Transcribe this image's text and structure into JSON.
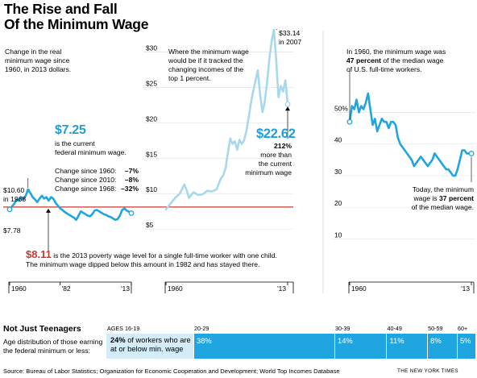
{
  "title_line1": "The Rise and Fall",
  "title_line2": "Of the Minimum Wage",
  "panel1": {
    "intro": [
      "Change in the real",
      "minimum wage since",
      "1960, in 2013 dollars."
    ],
    "current_value": "$7.25",
    "current_caption": [
      "is the current",
      "federal minimum wage."
    ],
    "changes": [
      {
        "label": "Change since 1960:",
        "value": "–7%"
      },
      {
        "label": "Change since 2010:",
        "value": "–8%"
      },
      {
        "label": "Change since 1968:",
        "value": "–32%"
      }
    ],
    "peak_label": [
      "$10.60",
      "in 1968"
    ],
    "start_label": "$7.78",
    "poverty_value": "$8.11",
    "poverty_caption_1": " is the 2013 poverty wage level for a single full-time worker with one child.",
    "poverty_caption_2": "The minimum wage dipped below this amount in 1982 and has stayed there.",
    "x_ticks": [
      "1960",
      "'82",
      "'13"
    ]
  },
  "panel2": {
    "intro": [
      "Where the minimum wage",
      "would be if it tracked the",
      "changing incomes of the",
      "top 1 percent."
    ],
    "y_ticks": [
      "$30",
      "$25",
      "$20",
      "$15",
      "$10",
      "$5"
    ],
    "peak_label": [
      "$33.14",
      "in 2007"
    ],
    "end_value": "$22.62",
    "end_caption": [
      "212%",
      "more than",
      "the current",
      "minimum wage"
    ],
    "x_ticks": [
      "1960",
      "'13"
    ]
  },
  "panel3": {
    "intro_1": "In 1960, the minimum wage was",
    "intro_2_bold": "47 percent",
    "intro_2_rest": " of the median wage",
    "intro_3": "of U.S. full-time workers.",
    "y_ticks": [
      "50%",
      "40",
      "30",
      "20",
      "10"
    ],
    "end_1": "Today, the minimum",
    "end_2_pre": "wage is ",
    "end_2_bold": "37 percent",
    "end_3": "of the median wage.",
    "x_ticks": [
      "1960",
      "'13"
    ]
  },
  "teens": {
    "heading": "Not Just Teenagers",
    "description": [
      "Age distribution of those earning",
      "the federal minimum or less:"
    ],
    "age_groups": [
      "AGES 16-19",
      "20-29",
      "30-39",
      "40-49",
      "50-59",
      "60+"
    ],
    "first_bold": "24%",
    "first_text_1": " of workers who are",
    "first_text_2": "at or below min. wage",
    "rest_labels": [
      "38%",
      "14%",
      "11%",
      "8%",
      "5%"
    ]
  },
  "source": "Source: Bureau of Labor Statistics; Organization for Economic Cooperation and Development; World Top Incomes Database",
  "credit": "THE NEW YORK TIMES",
  "chart_data": [
    {
      "type": "line",
      "name": "Real federal minimum wage, 2013 dollars",
      "x_range": [
        1960,
        2013
      ],
      "x": [
        1960,
        1961,
        1962,
        1963,
        1964,
        1965,
        1966,
        1967,
        1968,
        1969,
        1970,
        1971,
        1972,
        1973,
        1974,
        1975,
        1976,
        1977,
        1978,
        1979,
        1980,
        1981,
        1982,
        1983,
        1984,
        1985,
        1986,
        1987,
        1988,
        1989,
        1990,
        1991,
        1992,
        1993,
        1994,
        1995,
        1996,
        1997,
        1998,
        1999,
        2000,
        2001,
        2002,
        2003,
        2004,
        2005,
        2006,
        2007,
        2008,
        2009,
        2010,
        2011,
        2012,
        2013
      ],
      "y": [
        7.78,
        8.2,
        8.55,
        9.2,
        9.0,
        9.5,
        9.2,
        9.7,
        10.6,
        10.1,
        9.5,
        9.2,
        8.8,
        9.3,
        9.7,
        9.3,
        9.5,
        9.0,
        9.5,
        9.3,
        8.7,
        8.3,
        7.9,
        7.7,
        7.4,
        7.2,
        7.0,
        6.8,
        6.6,
        6.3,
        6.9,
        7.5,
        7.3,
        7.1,
        6.9,
        6.8,
        7.1,
        7.6,
        7.7,
        7.5,
        7.3,
        7.1,
        7.0,
        6.8,
        6.7,
        6.5,
        6.3,
        6.4,
        6.9,
        7.7,
        7.9,
        7.6,
        7.45,
        7.25
      ],
      "reference_line": 8.11,
      "y_range": [
        4,
        33
      ]
    },
    {
      "type": "line",
      "name": "Minimum wage if it tracked incomes of the top 1 percent",
      "x_range": [
        1960,
        2013
      ],
      "x": [
        1960,
        1962,
        1964,
        1966,
        1968,
        1969,
        1970,
        1972,
        1974,
        1976,
        1978,
        1980,
        1982,
        1983,
        1984,
        1985,
        1986,
        1987,
        1988,
        1989,
        1990,
        1991,
        1992,
        1993,
        1994,
        1995,
        1996,
        1997,
        1998,
        1999,
        2000,
        2001,
        2002,
        2003,
        2004,
        2005,
        2006,
        2007,
        2008,
        2009,
        2010,
        2011,
        2012,
        2013
      ],
      "y": [
        7.78,
        8.6,
        9.4,
        10.0,
        11.3,
        10.5,
        9.4,
        10.2,
        9.8,
        9.9,
        10.4,
        10.3,
        10.6,
        11.4,
        12.2,
        12.6,
        13.7,
        15.8,
        17.8,
        17.0,
        17.4,
        16.2,
        17.6,
        17.0,
        17.5,
        18.8,
        20.7,
        22.8,
        24.5,
        25.9,
        27.4,
        24.0,
        21.5,
        22.9,
        25.6,
        28.9,
        31.5,
        33.14,
        28.9,
        23.6,
        25.2,
        24.4,
        26.0,
        22.62
      ],
      "y_ticks": [
        30,
        25,
        20,
        15,
        10,
        5
      ],
      "y_range": [
        4,
        33
      ]
    },
    {
      "type": "line",
      "name": "Minimum wage as percent of median wage of U.S. full-time workers",
      "x_range": [
        1960,
        2013
      ],
      "x": [
        1960,
        1961,
        1962,
        1963,
        1964,
        1965,
        1966,
        1967,
        1968,
        1969,
        1970,
        1971,
        1972,
        1973,
        1974,
        1975,
        1976,
        1977,
        1978,
        1979,
        1980,
        1981,
        1982,
        1983,
        1984,
        1985,
        1986,
        1987,
        1988,
        1989,
        1990,
        1991,
        1992,
        1993,
        1994,
        1995,
        1996,
        1997,
        1998,
        1999,
        2000,
        2001,
        2002,
        2003,
        2004,
        2005,
        2006,
        2007,
        2008,
        2009,
        2010,
        2011,
        2012,
        2013
      ],
      "y": [
        47,
        52,
        51,
        54,
        50,
        52,
        51,
        53,
        56,
        51,
        46,
        48,
        44,
        46,
        48,
        47,
        47,
        45,
        47,
        47,
        46,
        42,
        40,
        39,
        38,
        37,
        36,
        35,
        33,
        34,
        35,
        36,
        35,
        34,
        33,
        34,
        35,
        37,
        36,
        35,
        34,
        33,
        32,
        32,
        31,
        30,
        30,
        32,
        35,
        38,
        38,
        37,
        37,
        37
      ],
      "y_ticks": [
        50,
        40,
        30,
        20,
        10
      ],
      "y_range": [
        4,
        58
      ]
    },
    {
      "type": "bar",
      "name": "Age distribution of those earning the federal minimum or less",
      "categories": [
        "16-19",
        "20-29",
        "30-39",
        "40-49",
        "50-59",
        "60+"
      ],
      "values": [
        24,
        38,
        14,
        11,
        8,
        5
      ]
    }
  ]
}
